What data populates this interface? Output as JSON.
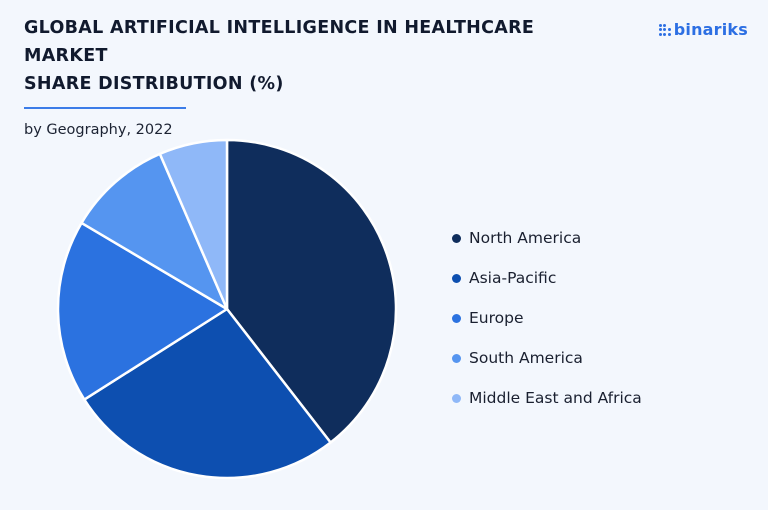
{
  "header": {
    "title_line1": "GLOBAL ARTIFICIAL INTELLIGENCE IN HEALTHCARE MARKET",
    "title_line2": "SHARE DISTRIBUTION (%)",
    "subtitle": "by Geography, 2022"
  },
  "brand": {
    "name": "binariks",
    "accent": "#2c6fe3"
  },
  "chart_data": {
    "type": "pie",
    "title": "GLOBAL ARTIFICIAL INTELLIGENCE IN HEALTHCARE MARKET SHARE DISTRIBUTION (%)",
    "subtitle": "by Geography, 2022",
    "legend_position": "right",
    "start_angle": "12 o'clock, clockwise",
    "slices": [
      {
        "label": "North America",
        "value": 39.5,
        "color": "#0f2d5c"
      },
      {
        "label": "Asia-Pacific",
        "value": 26.5,
        "color": "#0d4fb0"
      },
      {
        "label": "Europe",
        "value": 17.5,
        "color": "#2b72e0"
      },
      {
        "label": "South America",
        "value": 10.0,
        "color": "#5595f0"
      },
      {
        "label": "Middle East and Africa",
        "value": 6.5,
        "color": "#8fb8f8"
      }
    ]
  }
}
